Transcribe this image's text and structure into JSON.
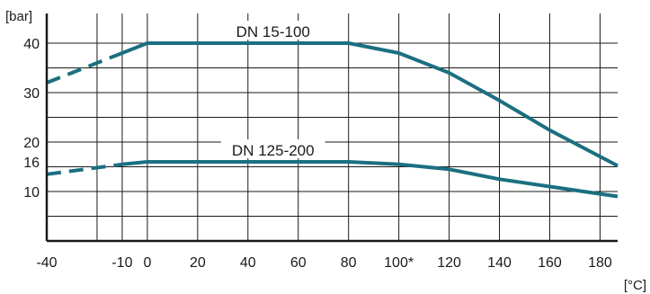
{
  "chart_data": {
    "type": "line",
    "title": "",
    "y_unit": "[bar]",
    "x_unit": "[°C]",
    "xlim": [
      -40,
      187
    ],
    "ylim": [
      0,
      46
    ],
    "x_grid": [
      -40,
      -20,
      -10,
      0,
      20,
      40,
      60,
      80,
      100,
      120,
      140,
      160,
      180
    ],
    "y_grid": [
      5,
      10,
      15,
      20,
      25,
      30,
      35,
      40
    ],
    "x_ticks": [
      {
        "value": -40,
        "label": "-40"
      },
      {
        "value": -10,
        "label": "-10"
      },
      {
        "value": 0,
        "label": "0"
      },
      {
        "value": 20,
        "label": "20"
      },
      {
        "value": 40,
        "label": "40"
      },
      {
        "value": 60,
        "label": "60"
      },
      {
        "value": 80,
        "label": "80"
      },
      {
        "value": 100,
        "label": "100*"
      },
      {
        "value": 120,
        "label": "120"
      },
      {
        "value": 140,
        "label": "140"
      },
      {
        "value": 160,
        "label": "160"
      },
      {
        "value": 180,
        "label": "180"
      }
    ],
    "y_ticks": [
      {
        "value": 10,
        "label": "10"
      },
      {
        "value": 16,
        "label": "16"
      },
      {
        "value": 20,
        "label": "20"
      },
      {
        "value": 30,
        "label": "30"
      },
      {
        "value": 40,
        "label": "40"
      }
    ],
    "grid": true,
    "series": [
      {
        "name": "DN 15-100",
        "color": "#1b6f80",
        "label_at": [
          50,
          40
        ],
        "dashed_points": [
          [
            -40,
            32
          ],
          [
            -10,
            38
          ]
        ],
        "solid_points": [
          [
            -10,
            38
          ],
          [
            0,
            40
          ],
          [
            80,
            40
          ],
          [
            100,
            38
          ],
          [
            120,
            34
          ],
          [
            140,
            28.4
          ],
          [
            160,
            22.4
          ],
          [
            187,
            15.2
          ]
        ]
      },
      {
        "name": "DN 125-200",
        "color": "#1b6f80",
        "label_at": [
          50,
          16
        ],
        "dashed_points": [
          [
            -40,
            13.5
          ],
          [
            -10,
            15.5
          ]
        ],
        "solid_points": [
          [
            -10,
            15.5
          ],
          [
            0,
            16
          ],
          [
            80,
            16
          ],
          [
            100,
            15.5
          ],
          [
            120,
            14.5
          ],
          [
            140,
            12.5
          ],
          [
            160,
            11
          ],
          [
            187,
            9
          ]
        ]
      }
    ]
  }
}
